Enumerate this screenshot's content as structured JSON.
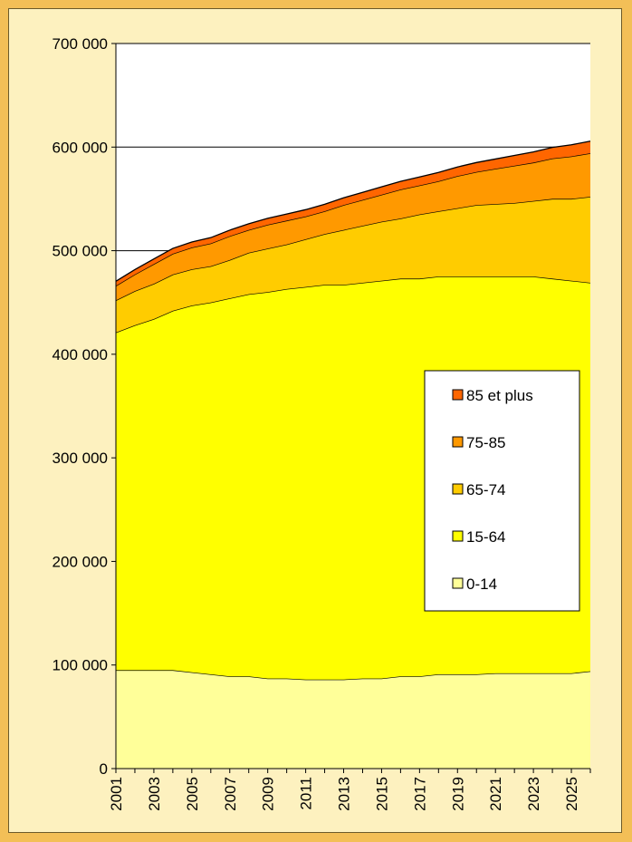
{
  "chart_data": {
    "type": "area",
    "stacked": true,
    "title": "",
    "xlabel": "",
    "ylabel": "",
    "x": [
      2001,
      2002,
      2003,
      2004,
      2005,
      2006,
      2007,
      2008,
      2009,
      2010,
      2011,
      2012,
      2013,
      2014,
      2015,
      2016,
      2017,
      2018,
      2019,
      2020,
      2021,
      2022,
      2023,
      2024,
      2025,
      2026
    ],
    "x_tick_labels": [
      "2001",
      "2003",
      "2005",
      "2007",
      "2009",
      "2011",
      "2013",
      "2015",
      "2017",
      "2019",
      "2021",
      "2023",
      "2025"
    ],
    "y_tick_labels": [
      "0",
      "100 000",
      "200 000",
      "300 000",
      "400 000",
      "500 000",
      "600 000",
      "700 000"
    ],
    "ylim": [
      0,
      700000
    ],
    "grid": "horizontal major",
    "legend_position": "right-middle",
    "series": [
      {
        "name": "0-14",
        "color": "#ffff99",
        "values": [
          95000,
          95000,
          95000,
          95000,
          93000,
          91000,
          89000,
          89000,
          87000,
          87000,
          86000,
          86000,
          86000,
          87000,
          87000,
          89000,
          89000,
          91000,
          91000,
          91000,
          92000,
          92000,
          92000,
          92000,
          92000,
          94000
        ]
      },
      {
        "name": "15-64",
        "color": "#ffff00",
        "values": [
          326000,
          333000,
          339000,
          347000,
          354000,
          359000,
          365000,
          369000,
          373000,
          376000,
          379000,
          381000,
          381000,
          382000,
          384000,
          384000,
          384000,
          384000,
          384000,
          384000,
          383000,
          383000,
          383000,
          381000,
          379000,
          375000
        ]
      },
      {
        "name": "65-74",
        "color": "#ffcc00",
        "values": [
          31000,
          33000,
          34000,
          35000,
          35000,
          35000,
          37000,
          40000,
          42000,
          43000,
          46000,
          49000,
          53000,
          55000,
          57000,
          58000,
          62000,
          63000,
          66000,
          69000,
          70000,
          71000,
          73000,
          77000,
          79000,
          83000
        ]
      },
      {
        "name": "75-85",
        "color": "#ff9900",
        "values": [
          14000,
          16000,
          19000,
          20000,
          21000,
          22000,
          23000,
          22000,
          23000,
          23000,
          22000,
          22000,
          24000,
          25000,
          26000,
          28000,
          28000,
          29000,
          31000,
          32000,
          34000,
          36000,
          37000,
          39000,
          41000,
          42000
        ]
      },
      {
        "name": "85 et plus",
        "color": "#ff6600",
        "values": [
          4500,
          4700,
          5000,
          5200,
          5400,
          5600,
          5800,
          6000,
          6200,
          6400,
          6600,
          6800,
          7000,
          7300,
          7600,
          7900,
          8200,
          8500,
          8800,
          9100,
          9500,
          9900,
          10300,
          10700,
          11200,
          11700
        ]
      }
    ]
  }
}
